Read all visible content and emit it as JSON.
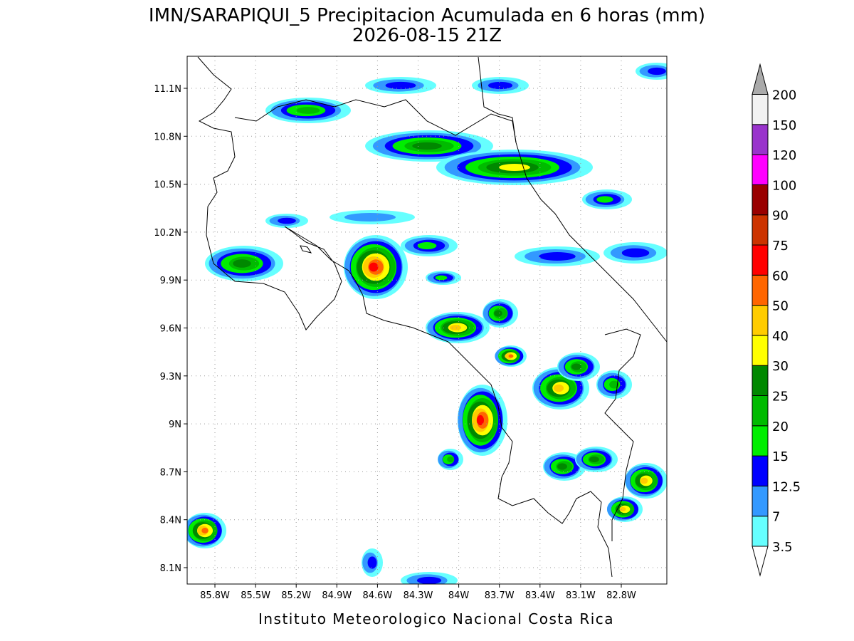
{
  "header": {
    "title": "IMN/SARAPIQUI_5 Precipitacion Acumulada en 6 horas (mm)",
    "subtitle": "2026-08-15 21Z"
  },
  "map": {
    "xticks": [
      "85.8W",
      "85.5W",
      "85.2W",
      "84.9W",
      "84.6W",
      "84.3W",
      "84W",
      "83.7W",
      "83.4W",
      "83.1W",
      "82.8W"
    ],
    "yticks": [
      "11.1N",
      "10.8N",
      "10.5N",
      "10.2N",
      "9.9N",
      "9.6N",
      "9.3N",
      "9N",
      "8.7N",
      "8.4N",
      "8.1N"
    ]
  },
  "colorbar": {
    "levels": [
      3.5,
      7,
      12.5,
      15,
      20,
      25,
      30,
      40,
      50,
      60,
      75,
      90,
      100,
      120,
      150,
      200
    ],
    "colors": [
      "#ffffff",
      "#66ffff",
      "#3399ff",
      "#0000ff",
      "#00ee00",
      "#00bb00",
      "#008800",
      "#ffff00",
      "#ffcc00",
      "#ff6600",
      "#ff0000",
      "#cc3300",
      "#990000",
      "#ff00ff",
      "#9933cc",
      "#f2f2f2",
      "#aaaaaa"
    ]
  },
  "footer": {
    "credit": "Instituto Meteorologico Nacional Costa Rica"
  }
}
